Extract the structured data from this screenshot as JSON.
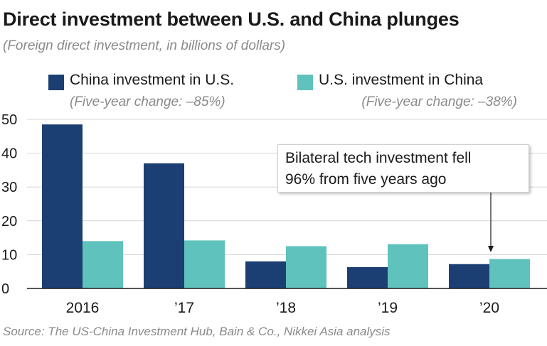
{
  "title": "Direct investment between U.S. and China plunges",
  "subtitle": "(Foreign direct investment, in billions of dollars)",
  "legend": [
    {
      "label": "China investment in U.S.",
      "note": "(Five-year change: –85%)",
      "color": "#1c3f73"
    },
    {
      "label": "U.S. investment in China",
      "note": "(Five-year change: –38%)",
      "color": "#5fc2bc"
    }
  ],
  "callout": {
    "line1": "Bilateral tech investment fell",
    "line2": "96% from five years ago"
  },
  "source": "Source: The US-China Investment Hub, Bain & Co., Nikkei Asia analysis",
  "colors": {
    "china_in_us": "#1c3f73",
    "us_in_china": "#5fc2bc",
    "grid": "#d4d4d4"
  },
  "chart_data": {
    "type": "bar",
    "categories": [
      "2016",
      "’17",
      "’18",
      "’19",
      "’20"
    ],
    "series": [
      {
        "name": "China investment in U.S.",
        "values": [
          48.5,
          37,
          8,
          6.3,
          7.2
        ]
      },
      {
        "name": "U.S. investment in China",
        "values": [
          14,
          14.2,
          12.5,
          13.1,
          8.7
        ]
      }
    ],
    "yticks": [
      0,
      10,
      20,
      30,
      40,
      50
    ],
    "ylim": [
      0,
      50
    ],
    "grid": true,
    "legend_position": "top"
  }
}
